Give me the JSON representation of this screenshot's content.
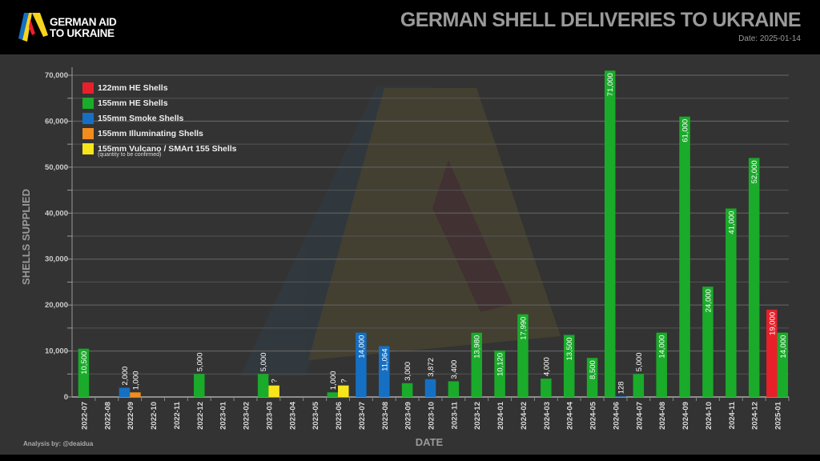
{
  "header": {
    "brand": "GERMAN AID TO UKRAINE",
    "brand_line1": "GERMAN AID",
    "brand_line2": "TO UKRAINE",
    "date": "Date: 2025-01-14"
  },
  "footer": {
    "credit": "Analysis by: @deaidua"
  },
  "chart_data": {
    "type": "bar",
    "title": "GERMAN SHELL DELIVERIES TO UKRAINE",
    "xlabel": "DATE",
    "ylabel": "SHELLS SUPPLIED",
    "ylim": [
      0,
      70000
    ],
    "yticks": [
      "0",
      "10,000",
      "20,000",
      "30,000",
      "40,000",
      "50,000",
      "60,000",
      "70,000"
    ],
    "grid": true,
    "legend_position": "top-left",
    "legend_note": "(quantity to be confirmed)",
    "categories": [
      "2022-07",
      "2022-08",
      "2022-09",
      "2022-10",
      "2022-11",
      "2022-12",
      "2023-01",
      "2023-02",
      "2023-03",
      "2023-04",
      "2023-05",
      "2023-06",
      "2023-07",
      "2023-08",
      "2023-09",
      "2023-10",
      "2023-11",
      "2023-12",
      "2024-01",
      "2024-02",
      "2024-03",
      "2024-04",
      "2024-05",
      "2024-06",
      "2024-07",
      "2024-08",
      "2024-09",
      "2024-10",
      "2024-11",
      "2024-12",
      "2025-01"
    ],
    "series": [
      {
        "name": "122mm HE Shells",
        "color": "#e8202a",
        "values": [
          null,
          null,
          null,
          null,
          null,
          null,
          null,
          null,
          null,
          null,
          null,
          null,
          null,
          null,
          null,
          null,
          null,
          null,
          null,
          null,
          null,
          null,
          null,
          null,
          null,
          null,
          null,
          null,
          null,
          null,
          19000
        ]
      },
      {
        "name": "155mm HE Shells",
        "color": "#1aab2a",
        "values": [
          10500,
          null,
          null,
          null,
          null,
          5000,
          null,
          null,
          5000,
          null,
          null,
          1000,
          null,
          null,
          3000,
          null,
          3400,
          13980,
          10120,
          17990,
          4000,
          13500,
          8500,
          71000,
          5000,
          14000,
          61000,
          24000,
          41000,
          52000,
          14000
        ]
      },
      {
        "name": "155mm Smoke Shells",
        "color": "#1570c4",
        "values": [
          null,
          null,
          2000,
          null,
          null,
          null,
          null,
          null,
          null,
          null,
          null,
          null,
          14000,
          11064,
          null,
          3872,
          null,
          null,
          null,
          null,
          null,
          null,
          null,
          128,
          null,
          null,
          null,
          null,
          null,
          null,
          null
        ]
      },
      {
        "name": "155mm Illuminating Shells",
        "color": "#f28c1c",
        "values": [
          null,
          null,
          1000,
          null,
          null,
          null,
          null,
          null,
          null,
          null,
          null,
          null,
          null,
          null,
          null,
          null,
          null,
          null,
          null,
          null,
          null,
          null,
          null,
          null,
          null,
          null,
          null,
          null,
          null,
          null,
          null
        ]
      },
      {
        "name": "155mm Vulcano / SMArt 155 Shells",
        "color": "#f7e51c",
        "values": [
          null,
          null,
          null,
          null,
          null,
          null,
          null,
          null,
          "?",
          null,
          null,
          "?",
          null,
          null,
          null,
          null,
          null,
          null,
          null,
          null,
          null,
          null,
          null,
          null,
          null,
          null,
          null,
          null,
          null,
          null,
          null
        ]
      }
    ]
  }
}
